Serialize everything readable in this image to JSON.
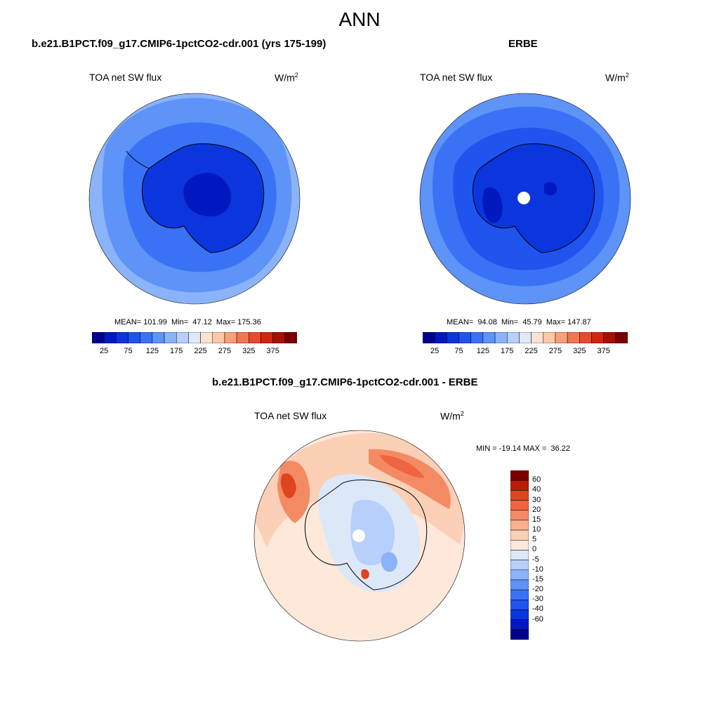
{
  "main_title": "ANN",
  "colors": {
    "abs_scale": [
      "#00008b",
      "#0018c0",
      "#0b35dd",
      "#1f54ee",
      "#3a72f5",
      "#5e93f8",
      "#8bb3fa",
      "#b6d0fb",
      "#dfe9f7",
      "#fde2cf",
      "#fbc7a8",
      "#f7a07a",
      "#f27650",
      "#e94a2c",
      "#d2260f",
      "#a80f05",
      "#7a0000"
    ],
    "diff_scale": [
      "#00008b",
      "#0018c0",
      "#0b35dd",
      "#1f54ee",
      "#3a72f5",
      "#5e93f8",
      "#8bb3fa",
      "#b6d0fb",
      "#dce8f8",
      "#fde8da",
      "#fbd0b6",
      "#f8b08e",
      "#f48a63",
      "#ef6540",
      "#e04320",
      "#b81e08",
      "#7a0000"
    ]
  },
  "panels": {
    "model": {
      "title": "b.e21.B1PCT.f09_g17.CMIP6-1pctCO2-cdr.001 (yrs 175-199)",
      "variable": "TOA net SW flux",
      "units_base": "W/m",
      "units_exp": "2",
      "stats": "MEAN= 101.99  Min=  47.12  Max= 175.36"
    },
    "obs": {
      "title": "ERBE",
      "variable": "TOA net SW flux",
      "units_base": "W/m",
      "units_exp": "2",
      "stats": "MEAN=  94.08  Min=  45.79  Max= 147.87"
    },
    "diff": {
      "title": "b.e21.B1PCT.f09_g17.CMIP6-1pctCO2-cdr.001 - ERBE",
      "variable": "TOA net SW flux",
      "units_base": "W/m",
      "units_exp": "2",
      "stats": "MIN = -19.14 MAX =  36.22"
    }
  },
  "colorbar_abs": {
    "labels": [
      "25",
      "75",
      "125",
      "175",
      "225",
      "275",
      "325",
      "375"
    ]
  },
  "colorbar_diff": {
    "labels": [
      "60",
      "40",
      "30",
      "20",
      "15",
      "10",
      "5",
      "0",
      "-5",
      "-10",
      "-15",
      "-20",
      "-30",
      "-40",
      "-60"
    ]
  }
}
